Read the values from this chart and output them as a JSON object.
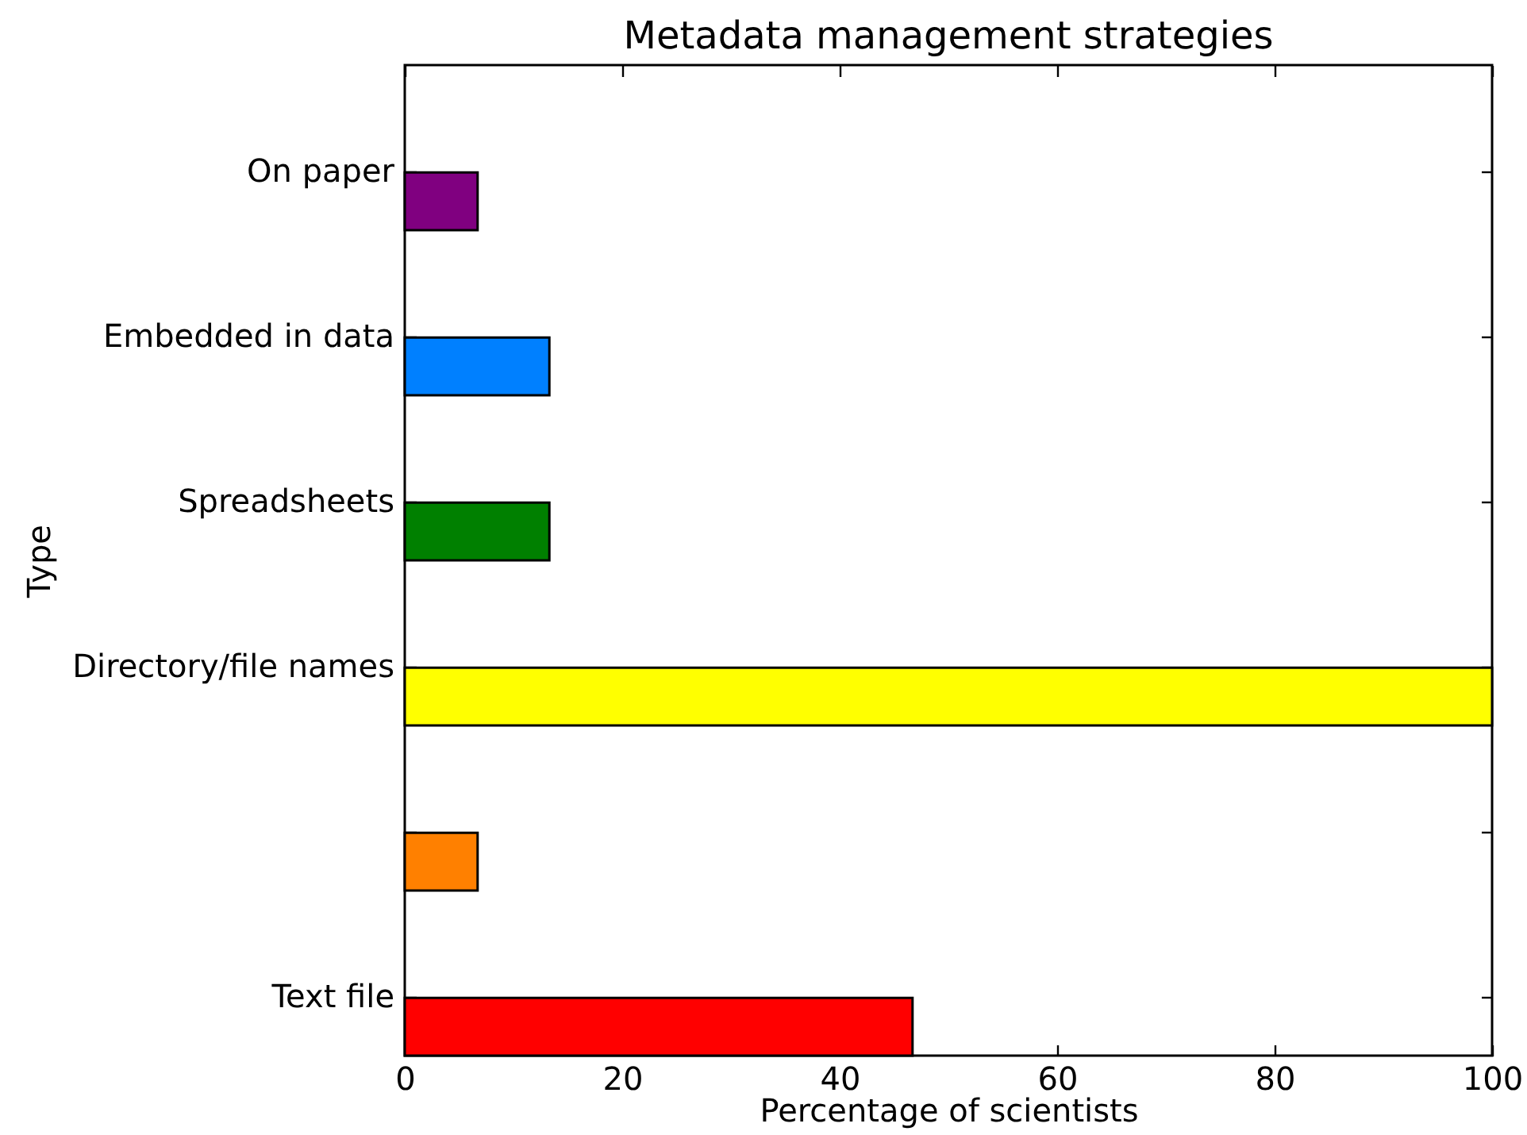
{
  "chart_data": {
    "type": "bar",
    "orientation": "horizontal",
    "title": "Metadata management strategies",
    "xlabel": "Percentage of scientists",
    "ylabel": "Type",
    "categories": [
      "On paper",
      "Embedded in data",
      "Spreadsheets",
      "Directory/file names",
      null,
      "Text file"
    ],
    "values": [
      6.7,
      13.3,
      13.3,
      100,
      6.7,
      46.7
    ],
    "colors": [
      "#800080",
      "#0080ff",
      "#008000",
      "#ffff00",
      "#ff8000",
      "#ff0000"
    ],
    "xlim": [
      0,
      100
    ],
    "xticks": [
      0,
      20,
      40,
      60,
      80,
      100
    ]
  }
}
